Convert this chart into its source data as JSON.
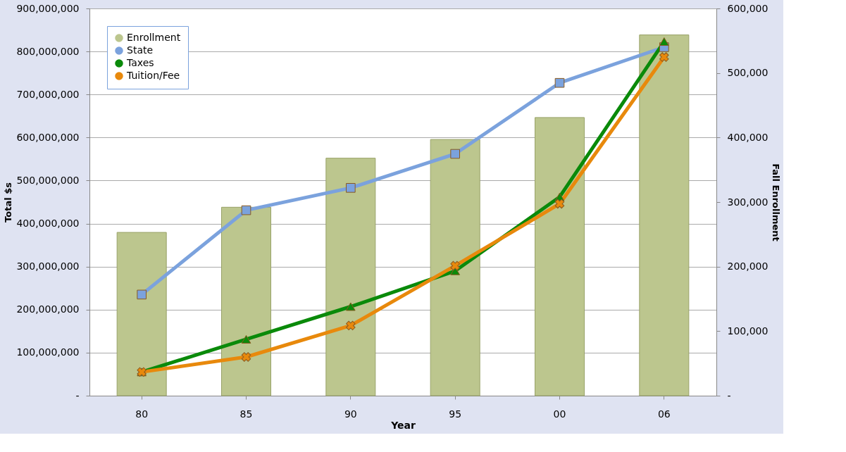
{
  "chart_data": {
    "type": "line",
    "categories": [
      "80",
      "85",
      "90",
      "95",
      "00",
      "06"
    ],
    "xlabel": "Year",
    "ylabel": "Total $s",
    "y2label": "Fall Enrollment",
    "series": [
      {
        "name": "Enrollment",
        "type": "bar",
        "axis": "y2",
        "color": "#bcc68e",
        "values": [
          253000,
          292000,
          368000,
          397000,
          431000,
          559000
        ]
      },
      {
        "name": "State",
        "marker": "square",
        "color": "#7ba2dd",
        "values": [
          235000000,
          431000000,
          483000000,
          562000000,
          727000000,
          810000000
        ]
      },
      {
        "name": "Taxes",
        "marker": "triangle",
        "color": "#0a8a0a",
        "values": [
          55000000,
          131000000,
          207000000,
          290000000,
          462000000,
          823000000
        ]
      },
      {
        "name": "Tuition/Fee",
        "marker": "cross",
        "color": "#e8890c",
        "values": [
          55000000,
          90000000,
          163000000,
          302000000,
          446000000,
          787000000
        ]
      }
    ],
    "ylim": [
      0,
      900000000
    ],
    "yticks": [
      {
        "value": 0,
        "label": "-"
      },
      {
        "value": 100000000,
        "label": "100,000,000"
      },
      {
        "value": 200000000,
        "label": "200,000,000"
      },
      {
        "value": 300000000,
        "label": "300,000,000"
      },
      {
        "value": 400000000,
        "label": "400,000,000"
      },
      {
        "value": 500000000,
        "label": "500,000,000"
      },
      {
        "value": 600000000,
        "label": "600,000,000"
      },
      {
        "value": 700000000,
        "label": "700,000,000"
      },
      {
        "value": 800000000,
        "label": "800,000,000"
      },
      {
        "value": 900000000,
        "label": "900,000,000"
      }
    ],
    "y2lim": [
      0,
      600000
    ],
    "y2ticks": [
      {
        "value": 0,
        "label": "-"
      },
      {
        "value": 100000,
        "label": "100,000"
      },
      {
        "value": 200000,
        "label": "200,000"
      },
      {
        "value": 300000,
        "label": "300,000"
      },
      {
        "value": 400000,
        "label": "400,000"
      },
      {
        "value": 500000,
        "label": "500,000"
      },
      {
        "value": 600000,
        "label": "600,000"
      }
    ],
    "grid": "y",
    "legend": "top left"
  }
}
